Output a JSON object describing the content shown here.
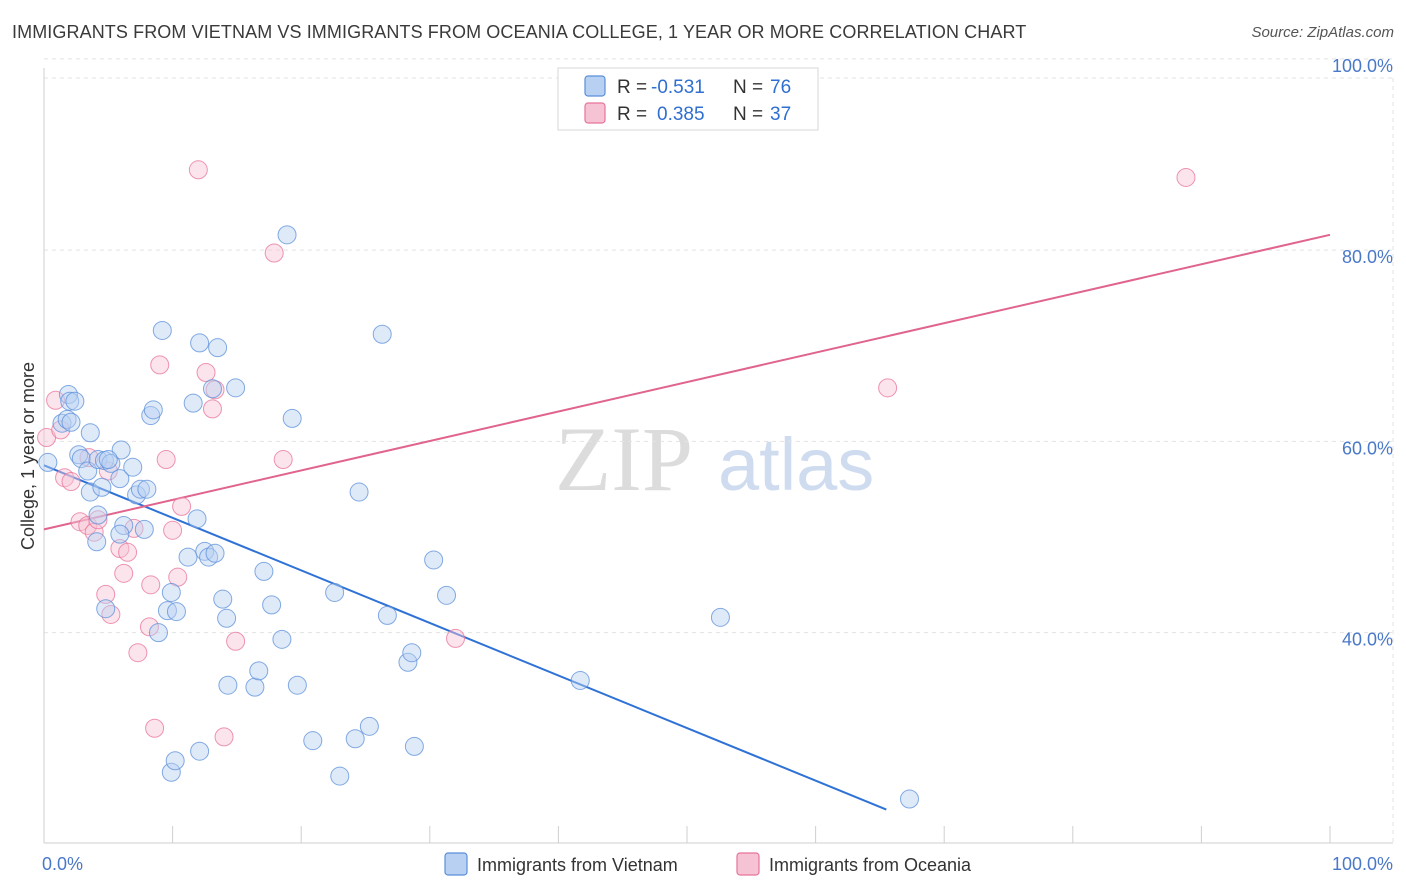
{
  "title": "IMMIGRANTS FROM VIETNAM VS IMMIGRANTS FROM OCEANIA COLLEGE, 1 YEAR OR MORE CORRELATION CHART",
  "source": "Source: ZipAtlas.com",
  "watermark": {
    "zip": "ZIP",
    "atlas": "atlas"
  },
  "chart_data": {
    "type": "scatter",
    "xlabel": "",
    "ylabel": "College, 1 year or more",
    "xlim": [
      0,
      100
    ],
    "ylim": [
      20,
      100
    ],
    "x_tick_labels": [
      "0.0%",
      "100.0%"
    ],
    "y_ticks": [
      40,
      60,
      80,
      100
    ],
    "y_tick_labels": [
      "40.0%",
      "60.0%",
      "80.0%",
      "100.0%"
    ],
    "grid": true,
    "legend": [
      {
        "name": "Immigrants from Vietnam",
        "r_label": "R =",
        "r": "-0.531",
        "n_label": "N =",
        "n": "76",
        "color": "#5b8fd9",
        "fill": "#b8d0f2"
      },
      {
        "name": "Immigrants from Oceania",
        "r_label": "R =",
        "r": "0.385",
        "n_label": "N =",
        "n": "37",
        "color": "#e8739a",
        "fill": "#f6c3d4"
      }
    ],
    "series": [
      {
        "name": "Immigrants from Vietnam",
        "color": "#5b8fd9",
        "trend": {
          "x": [
            0,
            65.5
          ],
          "y": [
            57.5,
            21.5
          ],
          "color": "#2f72d6"
        },
        "points": [
          [
            0.3,
            57.8
          ],
          [
            1.4,
            61.9
          ],
          [
            1.8,
            62.3
          ],
          [
            2.1,
            62.0
          ],
          [
            1.9,
            64.9
          ],
          [
            2.0,
            64.2
          ],
          [
            2.7,
            58.6
          ],
          [
            2.9,
            58.2
          ],
          [
            3.4,
            56.9
          ],
          [
            3.6,
            54.7
          ],
          [
            3.6,
            60.9
          ],
          [
            4.2,
            58.1
          ],
          [
            4.7,
            58.0
          ],
          [
            4.1,
            49.5
          ],
          [
            4.2,
            52.3
          ],
          [
            4.5,
            55.2
          ],
          [
            5.2,
            57.7
          ],
          [
            6.0,
            59.1
          ],
          [
            5.9,
            56.1
          ],
          [
            6.2,
            51.2
          ],
          [
            5.9,
            50.3
          ],
          [
            6.9,
            57.3
          ],
          [
            7.2,
            54.4
          ],
          [
            7.5,
            55.0
          ],
          [
            7.8,
            50.8
          ],
          [
            8.3,
            62.7
          ],
          [
            8.5,
            63.3
          ],
          [
            8.9,
            40.0
          ],
          [
            9.2,
            71.6
          ],
          [
            9.6,
            42.3
          ],
          [
            9.9,
            44.2
          ],
          [
            10.3,
            42.2
          ],
          [
            11.2,
            47.9
          ],
          [
            11.6,
            64.0
          ],
          [
            11.9,
            51.9
          ],
          [
            12.1,
            70.3
          ],
          [
            12.5,
            48.5
          ],
          [
            12.8,
            47.9
          ],
          [
            13.3,
            48.3
          ],
          [
            13.5,
            69.8
          ],
          [
            13.9,
            43.5
          ],
          [
            14.2,
            41.5
          ],
          [
            14.3,
            34.5
          ],
          [
            14.9,
            65.6
          ],
          [
            16.4,
            34.3
          ],
          [
            16.7,
            36.0
          ],
          [
            17.1,
            46.4
          ],
          [
            17.7,
            42.9
          ],
          [
            18.5,
            39.3
          ],
          [
            18.9,
            81.6
          ],
          [
            19.3,
            62.4
          ],
          [
            19.7,
            34.5
          ],
          [
            20.9,
            28.7
          ],
          [
            22.6,
            44.2
          ],
          [
            24.2,
            28.9
          ],
          [
            24.5,
            54.7
          ],
          [
            25.3,
            30.2
          ],
          [
            26.3,
            71.2
          ],
          [
            26.7,
            41.8
          ],
          [
            28.3,
            36.9
          ],
          [
            28.6,
            37.9
          ],
          [
            28.8,
            28.1
          ],
          [
            30.3,
            47.6
          ],
          [
            31.3,
            43.9
          ],
          [
            41.7,
            35.0
          ],
          [
            52.6,
            41.6
          ],
          [
            9.9,
            25.4
          ],
          [
            12.1,
            27.6
          ],
          [
            10.2,
            26.6
          ],
          [
            67.3,
            22.6
          ],
          [
            23.0,
            25.0
          ],
          [
            4.8,
            42.5
          ],
          [
            2.4,
            64.2
          ],
          [
            13.1,
            65.5
          ],
          [
            5.0,
            58.1
          ],
          [
            8.0,
            55.0
          ]
        ]
      },
      {
        "name": "Immigrants from Oceania",
        "color": "#e8739a",
        "trend": {
          "x": [
            0,
            100
          ],
          "y": [
            50.8,
            81.6
          ],
          "color": "#e0648c"
        },
        "points": [
          [
            0.2,
            60.4
          ],
          [
            0.9,
            64.3
          ],
          [
            1.3,
            61.2
          ],
          [
            1.6,
            56.2
          ],
          [
            2.1,
            55.8
          ],
          [
            2.8,
            51.6
          ],
          [
            3.5,
            58.3
          ],
          [
            3.4,
            51.2
          ],
          [
            3.9,
            50.5
          ],
          [
            4.2,
            51.8
          ],
          [
            4.8,
            44.0
          ],
          [
            5.0,
            56.9
          ],
          [
            5.2,
            41.9
          ],
          [
            5.9,
            48.8
          ],
          [
            6.2,
            46.2
          ],
          [
            6.5,
            48.4
          ],
          [
            7.0,
            50.9
          ],
          [
            7.3,
            37.9
          ],
          [
            8.2,
            40.6
          ],
          [
            8.3,
            45.0
          ],
          [
            8.6,
            30.0
          ],
          [
            9.0,
            68.0
          ],
          [
            9.5,
            58.1
          ],
          [
            10.0,
            50.7
          ],
          [
            10.4,
            45.8
          ],
          [
            10.7,
            53.2
          ],
          [
            12.0,
            88.4
          ],
          [
            12.6,
            67.2
          ],
          [
            13.1,
            63.4
          ],
          [
            13.3,
            65.4
          ],
          [
            14.0,
            29.1
          ],
          [
            14.9,
            39.1
          ],
          [
            17.9,
            79.7
          ],
          [
            18.6,
            58.1
          ],
          [
            32.0,
            39.4
          ],
          [
            65.6,
            65.6
          ],
          [
            88.8,
            87.6
          ]
        ]
      }
    ]
  },
  "bottom_legend": [
    "Immigrants from Vietnam",
    "Immigrants from Oceania"
  ]
}
